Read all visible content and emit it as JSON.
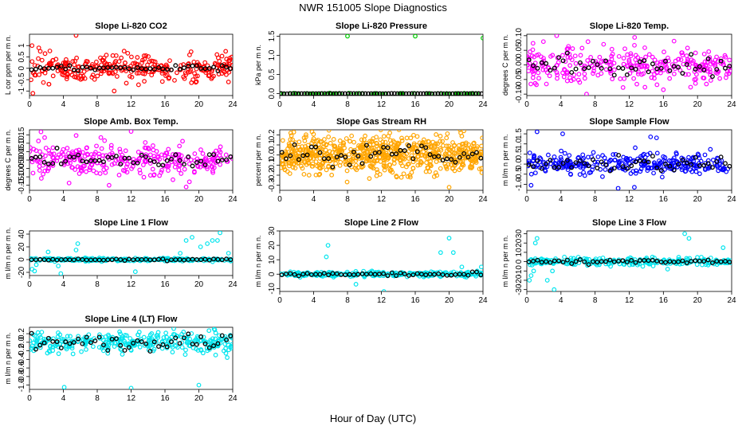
{
  "title": "NWR  151005  Slope Diagnostics",
  "xlabel": "Hour of Day (UTC)",
  "chart_data": [
    {
      "type": "scatter",
      "title": "Slope Li-820 CO2",
      "ylabel": "L cor ppm per m n.",
      "color": "#ff0000",
      "xlim": [
        0,
        24
      ],
      "ylim": [
        -1.2,
        1.5
      ],
      "yticks": [
        -1,
        -0.5,
        0,
        0.5,
        1
      ],
      "ytick_labels": [
        "-1",
        "-0.5",
        "0",
        "0.5",
        "1"
      ],
      "xticks": [
        0,
        4,
        8,
        12,
        16,
        20,
        24
      ],
      "n_dense": 300,
      "spread": 0.28,
      "n_black": 48,
      "black_spread": 0.06,
      "outliers": [
        [
          0.4,
          -1.1
        ],
        [
          5.5,
          1.45
        ],
        [
          10,
          -1.0
        ],
        [
          0.3,
          1.0
        ],
        [
          1.1,
          0.9
        ],
        [
          23.5,
          -0.6
        ],
        [
          2.3,
          -0.7
        ]
      ]
    },
    {
      "type": "scatter",
      "title": "Slope Li-820 Pressure",
      "ylabel": "kPa per m n.",
      "color": "#00cc00",
      "xlim": [
        0,
        24
      ],
      "ylim": [
        -0.05,
        1.55
      ],
      "yticks": [
        0,
        0.5,
        1,
        1.5
      ],
      "ytick_labels": [
        "0.0",
        "0.5",
        "1.0",
        "1.5"
      ],
      "xticks": [
        0,
        4,
        8,
        12,
        16,
        20,
        24
      ],
      "n_dense": 70,
      "spread": 0.005,
      "n_black": 70,
      "black_spread": 0.002,
      "outliers": [
        [
          8.0,
          1.5
        ],
        [
          16.0,
          1.5
        ],
        [
          24.0,
          1.45
        ],
        [
          0.0,
          0.0
        ]
      ]
    },
    {
      "type": "scatter",
      "title": "Slope Li-820 Temp.",
      "ylabel": "degrees C per m n.",
      "color": "#ff00ff",
      "xlim": [
        0,
        24
      ],
      "ylim": [
        -0.105,
        0.105
      ],
      "yticks": [
        -0.1,
        -0.05,
        0,
        0.05,
        0.1
      ],
      "ytick_labels": [
        "-0.10",
        "-0.05",
        "0.00",
        "0.05",
        "0.10"
      ],
      "xticks": [
        0,
        4,
        8,
        12,
        16,
        20,
        24
      ],
      "n_dense": 300,
      "spread": 0.03,
      "n_black": 48,
      "black_spread": 0.02,
      "outliers": [
        [
          3.5,
          0.1
        ],
        [
          7.0,
          -0.1
        ],
        [
          16.0,
          -0.085
        ],
        [
          6.2,
          -0.06
        ]
      ]
    },
    {
      "type": "scatter",
      "title": "Slope Amb. Box Temp.",
      "ylabel": "degrees C per m n.",
      "color": "#ff00ff",
      "xlim": [
        0,
        24
      ],
      "ylim": [
        -0.18,
        0.18
      ],
      "yticks": [
        -0.15,
        -0.1,
        -0.05,
        0,
        0.05,
        0.1,
        0.15
      ],
      "ytick_labels": [
        "-0.15",
        "-0.10",
        "-0.05",
        "0.00",
        "0.05",
        "0.10",
        "0.15"
      ],
      "xticks": [
        0,
        4,
        8,
        12,
        16,
        20,
        24
      ],
      "n_dense": 300,
      "spread": 0.05,
      "n_black": 48,
      "black_spread": 0.02,
      "outliers": [
        [
          18.5,
          -0.16
        ],
        [
          12.0,
          0.17
        ],
        [
          9.4,
          -0.15
        ]
      ]
    },
    {
      "type": "scatter",
      "title": "Slope Gas Stream RH",
      "ylabel": "percent per m n.",
      "color": "#ffa500",
      "xlim": [
        0,
        24
      ],
      "ylim": [
        -0.35,
        0.25
      ],
      "yticks": [
        -0.3,
        -0.2,
        -0.1,
        0,
        0.1,
        0.2
      ],
      "ytick_labels": [
        "-0.3",
        "-0.2",
        "-0.1",
        "0.0",
        "0.1",
        "0.2"
      ],
      "xticks": [
        0,
        4,
        8,
        12,
        16,
        20,
        24
      ],
      "n_dense": 700,
      "spread": 0.09,
      "n_black": 48,
      "black_spread": 0.05,
      "outliers": [
        [
          20.0,
          -0.32
        ],
        [
          13.0,
          0.22
        ]
      ]
    },
    {
      "type": "scatter",
      "title": "Slope Sample Flow",
      "ylabel": "m l/m n per m n.",
      "color": "#0000ff",
      "xlim": [
        0,
        24
      ],
      "ylim": [
        -1.3,
        1.7
      ],
      "yticks": [
        -1,
        -0.5,
        0,
        0.5,
        1,
        1.5
      ],
      "ytick_labels": [
        "-1.0",
        "-0.5",
        "0.0",
        "0.5",
        "1.0",
        "1.5"
      ],
      "xticks": [
        0,
        4,
        8,
        12,
        16,
        20,
        24
      ],
      "n_dense": 300,
      "spread": 0.25,
      "n_black": 48,
      "black_spread": 0.2,
      "outliers": [
        [
          1.2,
          1.6
        ],
        [
          4.2,
          1.5
        ],
        [
          14.5,
          1.35
        ],
        [
          12.6,
          -1.15
        ],
        [
          0.5,
          -1.05
        ],
        [
          10.7,
          -1.2
        ],
        [
          15.2,
          1.3
        ]
      ]
    },
    {
      "type": "scatter",
      "title": "Slope Line 1 Flow",
      "ylabel": "m l/m n per m n.",
      "color": "#00e5ee",
      "xlim": [
        0,
        24
      ],
      "ylim": [
        -25,
        45
      ],
      "yticks": [
        -20,
        0,
        20,
        40
      ],
      "ytick_labels": [
        "-20",
        "0",
        "20",
        "40"
      ],
      "xticks": [
        0,
        4,
        8,
        12,
        16,
        20,
        24
      ],
      "n_dense": 260,
      "spread": 1.2,
      "n_black": 48,
      "black_spread": 0.6,
      "outliers": [
        [
          0.3,
          -15
        ],
        [
          0.8,
          -8
        ],
        [
          0.6,
          -18
        ],
        [
          3.7,
          -22
        ],
        [
          5.5,
          15
        ],
        [
          5.7,
          25
        ],
        [
          12.5,
          -19
        ],
        [
          17.8,
          10
        ],
        [
          18.5,
          30
        ],
        [
          19.2,
          35
        ],
        [
          21,
          25
        ],
        [
          21.6,
          30
        ],
        [
          22.5,
          42
        ],
        [
          22.2,
          30
        ],
        [
          23.5,
          10
        ],
        [
          2.2,
          12
        ],
        [
          3.4,
          -10
        ],
        [
          20.2,
          20
        ]
      ]
    },
    {
      "type": "scatter",
      "title": "Slope Line 2 Flow",
      "ylabel": "m l/m n per m n.",
      "color": "#00e5ee",
      "xlim": [
        0,
        24
      ],
      "ylim": [
        -12,
        30
      ],
      "yticks": [
        -10,
        0,
        10,
        20,
        30
      ],
      "ytick_labels": [
        "-10",
        "0",
        "10",
        "20",
        "30"
      ],
      "xticks": [
        0,
        4,
        8,
        12,
        16,
        20,
        24
      ],
      "n_dense": 260,
      "spread": 0.8,
      "n_black": 48,
      "black_spread": 0.5,
      "outliers": [
        [
          5.5,
          12
        ],
        [
          5.7,
          20
        ],
        [
          12.3,
          -12
        ],
        [
          19.0,
          15
        ],
        [
          20.0,
          25
        ],
        [
          20.5,
          15
        ],
        [
          21.5,
          5
        ],
        [
          23.8,
          5
        ],
        [
          9.0,
          -7
        ]
      ]
    },
    {
      "type": "scatter",
      "title": "Slope Line 3 Flow",
      "ylabel": "m l/m n per m n.",
      "color": "#00e5ee",
      "xlim": [
        0,
        24
      ],
      "ylim": [
        -32,
        33
      ],
      "yticks": [
        -30,
        -20,
        -10,
        0,
        10,
        20,
        30
      ],
      "ytick_labels": [
        "-30",
        "-20",
        "-10",
        "0",
        "10",
        "20",
        "30"
      ],
      "xticks": [
        0,
        4,
        8,
        12,
        16,
        20,
        24
      ],
      "n_dense": 260,
      "spread": 2,
      "n_black": 48,
      "black_spread": 1,
      "outliers": [
        [
          0.3,
          -20
        ],
        [
          0.5,
          -15
        ],
        [
          0.8,
          -10
        ],
        [
          1.0,
          20
        ],
        [
          1.2,
          25
        ],
        [
          2.4,
          -20
        ],
        [
          3.2,
          -30
        ],
        [
          3.0,
          -10
        ],
        [
          18.5,
          30
        ],
        [
          19.0,
          25
        ],
        [
          23.0,
          15
        ],
        [
          16.5,
          -8
        ],
        [
          4.4,
          5
        ]
      ]
    },
    {
      "type": "scatter",
      "title": "Slope Line 4 (LT) Flow",
      "ylabel": "m l/m n per m n.",
      "color": "#00e5ee",
      "xlim": [
        0,
        24
      ],
      "ylim": [
        -1.1,
        0.35
      ],
      "yticks": [
        -1,
        -0.8,
        -0.6,
        -0.4,
        -0.2,
        0,
        0.2
      ],
      "ytick_labels": [
        "-1.0",
        "-0.8",
        "-0.6",
        "-0.4",
        "-0.2",
        "0.0",
        "0.2"
      ],
      "xticks": [
        0,
        4,
        8,
        12,
        16,
        20,
        24
      ],
      "n_dense": 320,
      "spread": 0.12,
      "n_black": 48,
      "black_spread": 0.1,
      "outliers": [
        [
          4.1,
          -1.05
        ],
        [
          12.0,
          -1.07
        ],
        [
          20.0,
          -1.0
        ],
        [
          20.5,
          -0.25
        ]
      ]
    }
  ]
}
